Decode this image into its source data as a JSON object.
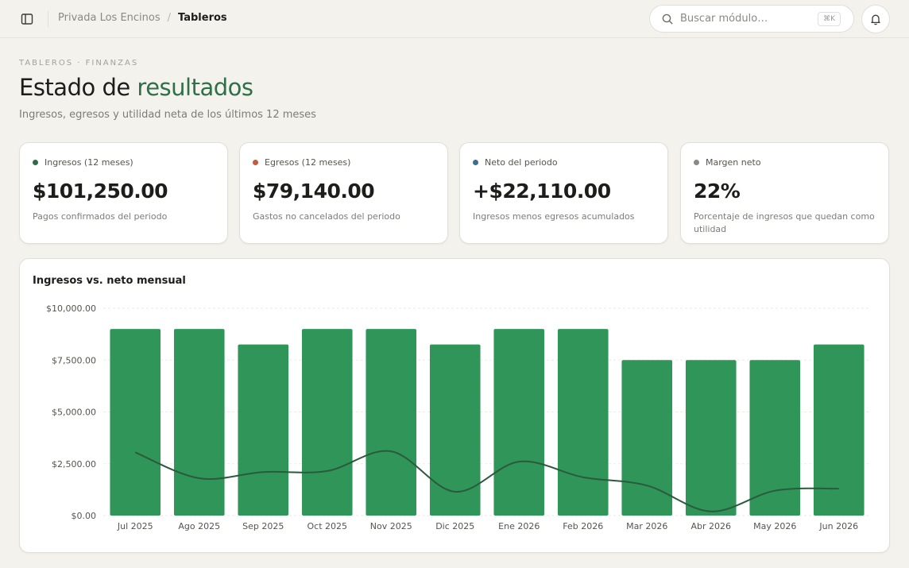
{
  "topbar": {
    "breadcrumb_parent": "Privada Los Encinos",
    "breadcrumb_sep": "/",
    "breadcrumb_current": "Tableros",
    "search_placeholder": "Buscar módulo…",
    "search_shortcut": "⌘K",
    "icons": [
      "sidebar-toggle-icon",
      "search-icon",
      "bell-icon"
    ]
  },
  "header": {
    "eyebrow": "TABLEROS · FINANZAS",
    "title_main": "Estado de",
    "title_accent": "resultados",
    "subtitle": "Ingresos, egresos y utilidad neta de los últimos 12 meses",
    "accent_color": "#2f7048"
  },
  "kpis": [
    {
      "label": "Ingresos (12 meses)",
      "value": "$101,250.00",
      "caption": "Pagos confirmados del periodo",
      "dot_color": "#2f6b45"
    },
    {
      "label": "Egresos (12 meses)",
      "value": "$79,140.00",
      "caption": "Gastos no cancelados del periodo",
      "dot_color": "#c25a3b"
    },
    {
      "label": "Neto del periodo",
      "value": "+$22,110.00",
      "caption": "Ingresos menos egresos acumulados",
      "dot_color": "#3f6d8c"
    },
    {
      "label": "Margen neto",
      "value": "22%",
      "caption": "Porcentaje de ingresos que quedan como utilidad",
      "dot_color": "#8a8983"
    }
  ],
  "chart_card": {
    "title": "Ingresos vs. neto mensual"
  },
  "chart_data": {
    "type": "bar",
    "title": "Ingresos vs. neto mensual",
    "categories": [
      "Jul 2025",
      "Ago 2025",
      "Sep 2025",
      "Oct 2025",
      "Nov 2025",
      "Dic 2025",
      "Ene 2026",
      "Feb 2026",
      "Mar 2026",
      "Abr 2026",
      "May 2026",
      "Jun 2026"
    ],
    "series": [
      {
        "type": "bar",
        "values": [
          9000,
          9000,
          8250,
          9000,
          9000,
          8250,
          9000,
          9000,
          7500,
          7500,
          7500,
          8250
        ],
        "color": "#2f9559"
      },
      {
        "type": "line",
        "values": [
          3050,
          1800,
          2100,
          2150,
          3100,
          1150,
          2600,
          1850,
          1450,
          200,
          1200,
          1300
        ],
        "color": "#2b5a3c"
      }
    ],
    "yticks": [
      "$0.00",
      "$2,500.00",
      "$5,000.00",
      "$7,500.00",
      "$10,000.00"
    ],
    "ylim": [
      0,
      10000
    ],
    "grid": true
  }
}
